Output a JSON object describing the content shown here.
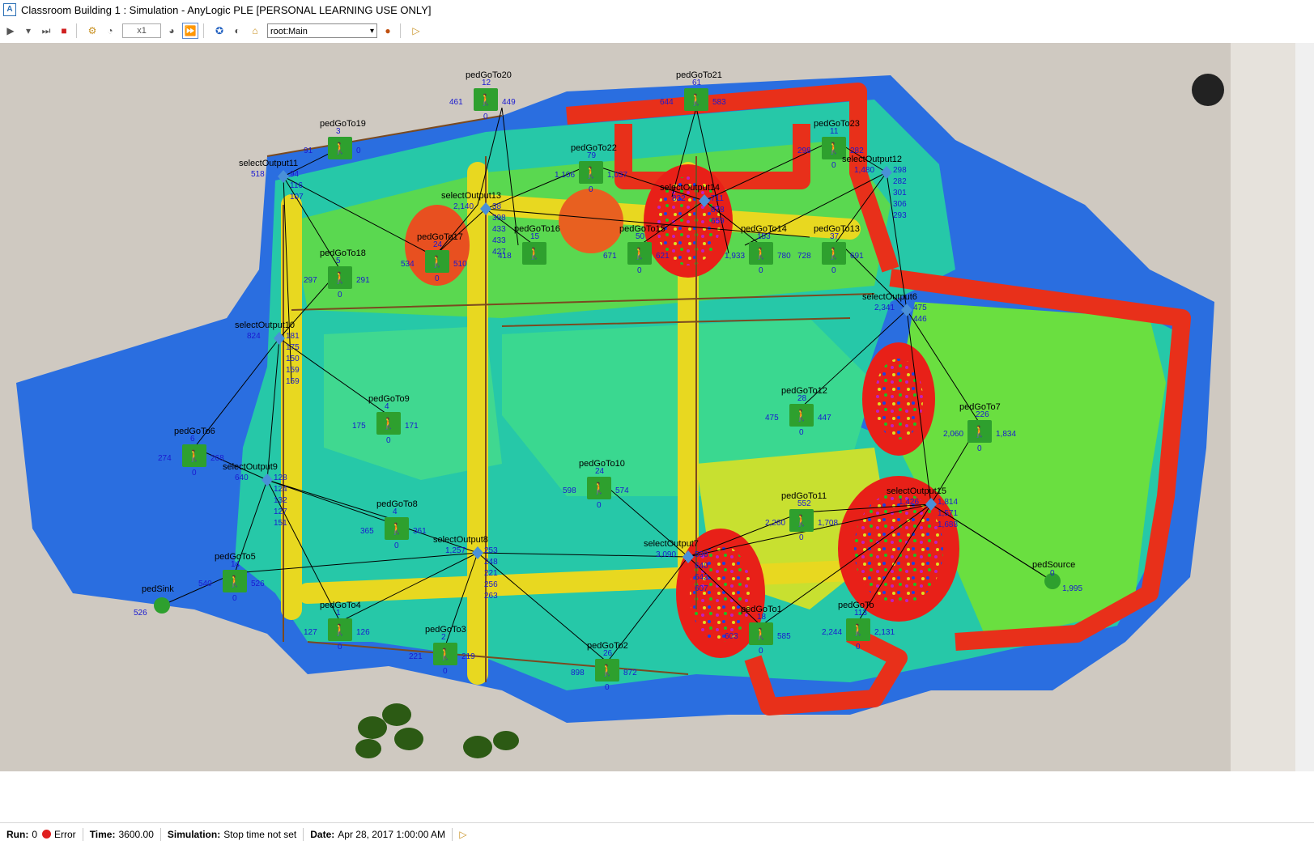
{
  "window": {
    "title": "Classroom Building 1 : Simulation - AnyLogic PLE [PERSONAL LEARNING USE ONLY]"
  },
  "toolbar": {
    "speed": "x1",
    "navigation": "root:Main",
    "icons": [
      "run-icon",
      "pause-dropdown-icon",
      "step-icon",
      "stop-icon",
      "experiment-icon",
      "slow-icon",
      "fast-icon",
      "realtime-icon",
      "model-info-icon",
      "back-icon",
      "home-icon",
      "navigate-icon",
      "dropdown-go-icon",
      "play-small-icon"
    ]
  },
  "blocks": [
    {
      "name": "pedGoTo20",
      "nums": [
        "12",
        "461",
        "449",
        "0"
      ]
    },
    {
      "name": "pedGoTo21",
      "nums": [
        "61",
        "644",
        "583"
      ]
    },
    {
      "name": "pedGoTo19",
      "nums": [
        "3",
        "91",
        "0"
      ]
    },
    {
      "name": "selectOutput11",
      "nums": [
        "518",
        "94",
        "116",
        "107"
      ]
    },
    {
      "name": "pedGoTo22",
      "nums": [
        "79",
        "1,106",
        "1,037",
        "0"
      ]
    },
    {
      "name": "selectOutput13",
      "nums": [
        "2,140",
        "38",
        "398",
        "433",
        "433",
        "427"
      ]
    },
    {
      "name": "selectOutput14",
      "nums": [
        "832",
        "711",
        "878",
        "659"
      ]
    },
    {
      "name": "pedGoTo23",
      "nums": [
        "11",
        "298",
        "282",
        "0"
      ]
    },
    {
      "name": "selectOutput12",
      "nums": [
        "1,480",
        "298",
        "282",
        "301",
        "306",
        "293"
      ]
    },
    {
      "name": "pedGoTo18",
      "nums": [
        "5",
        "297",
        "291",
        "0"
      ]
    },
    {
      "name": "pedGoTo17",
      "nums": [
        "24",
        "534",
        "510",
        "0"
      ]
    },
    {
      "name": "pedGoTo16",
      "nums": [
        "15",
        "418"
      ]
    },
    {
      "name": "pedGoTo15",
      "nums": [
        "50",
        "671",
        "621",
        "0"
      ]
    },
    {
      "name": "pedGoTo14",
      "nums": [
        "153",
        "1,933",
        "780",
        "0"
      ]
    },
    {
      "name": "pedGoTo13",
      "nums": [
        "37",
        "728",
        "691",
        "0"
      ]
    },
    {
      "name": "selectOutput6",
      "nums": [
        "2,341",
        "475",
        "446"
      ]
    },
    {
      "name": "selectOutput10",
      "nums": [
        "824",
        "181",
        "175",
        "150",
        "159",
        "159"
      ]
    },
    {
      "name": "pedGoTo12",
      "nums": [
        "28",
        "475",
        "447",
        "0"
      ]
    },
    {
      "name": "pedGoTo9",
      "nums": [
        "4",
        "175",
        "171",
        "0"
      ]
    },
    {
      "name": "pedGoTo6",
      "nums": [
        "6",
        "274",
        "268",
        "0"
      ]
    },
    {
      "name": "pedGoTo7",
      "nums": [
        "226",
        "2,060",
        "1,834",
        "0"
      ]
    },
    {
      "name": "selectOutput9",
      "nums": [
        "640",
        "128",
        "124",
        "132",
        "127",
        "151"
      ]
    },
    {
      "name": "pedGoTo10",
      "nums": [
        "24",
        "598",
        "574",
        "0"
      ]
    },
    {
      "name": "pedGoTo8",
      "nums": [
        "4",
        "365",
        "361",
        "0"
      ]
    },
    {
      "name": "pedGoTo11",
      "nums": [
        "552",
        "2,260",
        "1,708",
        "0"
      ]
    },
    {
      "name": "selectOutput15",
      "nums": [
        "1,426",
        "1,814",
        "1,571",
        "1,688"
      ]
    },
    {
      "name": "selectOutput8",
      "nums": [
        "1,257",
        "253",
        "248",
        "221",
        "256",
        "263"
      ]
    },
    {
      "name": "selectOutput7",
      "nums": [
        "3,090",
        "598",
        "640",
        "642",
        "607"
      ]
    },
    {
      "name": "pedGoTo5",
      "nums": [
        "14",
        "540",
        "526",
        "0"
      ]
    },
    {
      "name": "pedSink",
      "nums": [
        "526"
      ]
    },
    {
      "name": "pedSource",
      "nums": [
        "0",
        "1,995"
      ]
    },
    {
      "name": "pedGoTo4",
      "nums": [
        "1",
        "127",
        "126",
        "0"
      ]
    },
    {
      "name": "pedGoTo3",
      "nums": [
        "2",
        "221",
        "219",
        "0"
      ]
    },
    {
      "name": "pedGoTo2",
      "nums": [
        "26",
        "898",
        "872",
        "0"
      ]
    },
    {
      "name": "pedGoTo1",
      "nums": [
        "18",
        "603",
        "585",
        "0"
      ]
    },
    {
      "name": "pedGoTo",
      "nums": [
        "113",
        "2,244",
        "2,131",
        "0"
      ]
    }
  ],
  "status": {
    "run_label": "Run:",
    "run_value": "0",
    "state": "Error",
    "time_label": "Time:",
    "time_value": "3600.00",
    "sim_label": "Simulation:",
    "sim_value": "Stop time not set",
    "date_label": "Date:",
    "date_value": "Apr 28, 2017 1:00:00 AM"
  },
  "colors": {
    "heat_red": "#e8201a",
    "heat_yellow": "#e8e020",
    "heat_green": "#30d060",
    "heat_cyan": "#20c0e0",
    "heat_blue": "#2060e0",
    "block_green": "#2ea02e"
  }
}
